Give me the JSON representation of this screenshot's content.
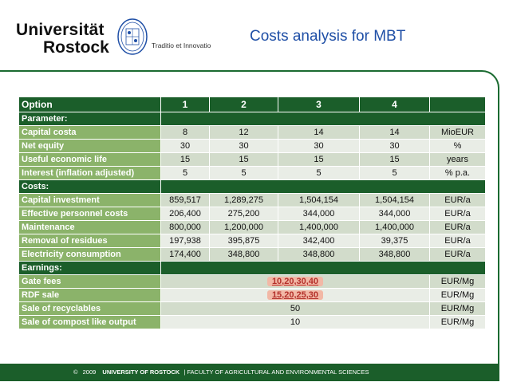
{
  "university": {
    "name_line1": "Universität",
    "name_line2": "Rostock",
    "motto": "Traditio et Innovatio"
  },
  "slide_title": "Costs analysis for MBT",
  "table": {
    "header": {
      "label": "Option",
      "options": [
        "1",
        "2",
        "3",
        "4"
      ],
      "unit": ""
    },
    "sections": [
      {
        "title": "Parameter:",
        "rows": [
          {
            "label": "Capital costa",
            "values": [
              "8",
              "12",
              "14",
              "14"
            ],
            "unit": "MioEUR"
          },
          {
            "label": "Net equity",
            "values": [
              "30",
              "30",
              "30",
              "30"
            ],
            "unit": "%"
          },
          {
            "label": "Useful economic life",
            "values": [
              "15",
              "15",
              "15",
              "15"
            ],
            "unit": "years"
          },
          {
            "label": "Interest (inflation adjusted)",
            "values": [
              "5",
              "5",
              "5",
              "5"
            ],
            "unit": "% p.a."
          }
        ]
      },
      {
        "title": "Costs:",
        "rows": [
          {
            "label": "Capital investment",
            "values": [
              "859,517",
              "1,289,275",
              "1,504,154",
              "1,504,154"
            ],
            "unit": "EUR/a"
          },
          {
            "label": "Effective personnel costs",
            "values": [
              "206,400",
              "275,200",
              "344,000",
              "344,000"
            ],
            "unit": "EUR/a"
          },
          {
            "label": "Maintenance",
            "values": [
              "800,000",
              "1,200,000",
              "1,400,000",
              "1,400,000"
            ],
            "unit": "EUR/a"
          },
          {
            "label": "Removal of residues",
            "values": [
              "197,938",
              "395,875",
              "342,400",
              "39,375"
            ],
            "unit": "EUR/a"
          },
          {
            "label": "Electricity consumption",
            "values": [
              "174,400",
              "348,800",
              "348,800",
              "348,800"
            ],
            "unit": "EUR/a"
          }
        ]
      },
      {
        "title": "Earnings:",
        "rows": [
          {
            "label": "Gate fees",
            "value": "10,20,30,40",
            "highlight": true,
            "unit": "EUR/Mg"
          },
          {
            "label": "RDF sale",
            "value": "15,20,25,30",
            "highlight": true,
            "unit": "EUR/Mg"
          },
          {
            "label": "Sale of recyclables",
            "value": "50",
            "highlight": false,
            "unit": "EUR/Mg"
          },
          {
            "label": "Sale of compost like output",
            "value": "10",
            "highlight": false,
            "unit": "EUR/Mg"
          }
        ]
      }
    ]
  },
  "footer": {
    "copyright": "©",
    "year": "2009",
    "institution": "UNIVERSITY OF ROSTOCK",
    "faculty": "| FACULTY OF AGRICULTURAL AND ENVIRONMENTAL SCIENCES"
  },
  "colors": {
    "dark_green": "#1b5e2a",
    "label_green": "#8bb36a",
    "title_blue": "#1f4fa6",
    "highlight": "#f2b8a6"
  }
}
